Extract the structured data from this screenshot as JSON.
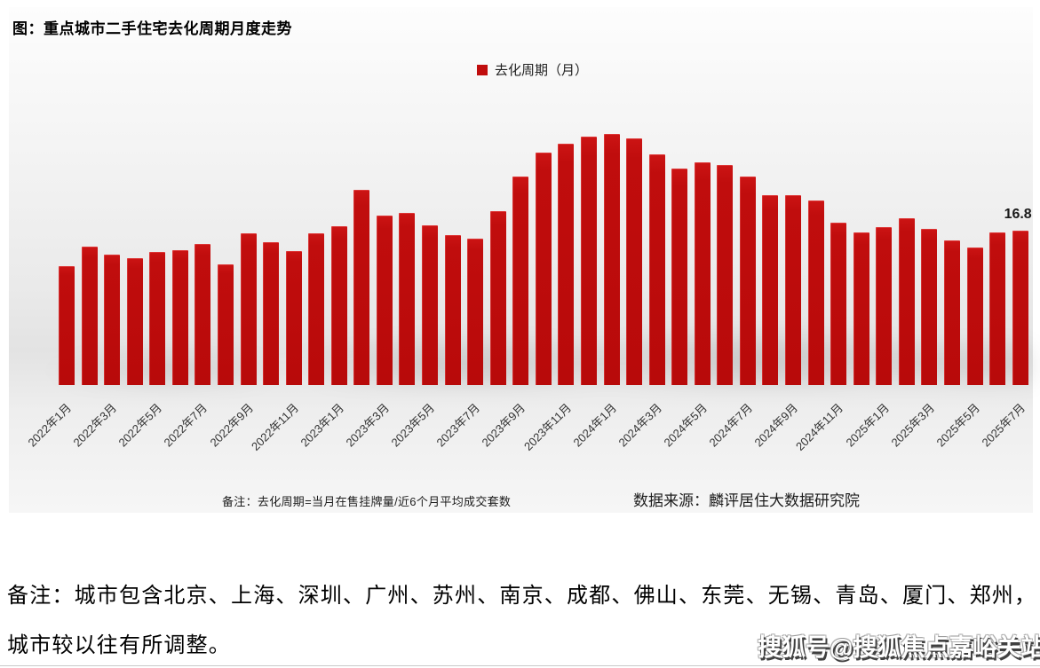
{
  "header": {
    "title": "图：重点城市二手住宅去化周期月度走势"
  },
  "legend": {
    "label": "去化周期（月）",
    "color": "#c00d0d"
  },
  "chart_data": {
    "type": "bar",
    "title": "重点城市二手住宅去化周期月度走势",
    "series_name": "去化周期（月）",
    "bar_color": "#c00d0d",
    "grid": false,
    "legend_position": "top-center",
    "ylim": [
      0,
      28
    ],
    "x_tick_every": 2,
    "categories": [
      "2022年1月",
      "2022年2月",
      "2022年3月",
      "2022年4月",
      "2022年5月",
      "2022年6月",
      "2022年7月",
      "2022年8月",
      "2022年9月",
      "2022年10月",
      "2022年11月",
      "2022年12月",
      "2023年1月",
      "2023年2月",
      "2023年3月",
      "2023年4月",
      "2023年5月",
      "2023年6月",
      "2023年7月",
      "2023年8月",
      "2023年9月",
      "2023年10月",
      "2023年11月",
      "2023年12月",
      "2024年1月",
      "2024年2月",
      "2024年3月",
      "2024年4月",
      "2024年5月",
      "2024年6月",
      "2024年7月",
      "2024年8月",
      "2024年9月",
      "2024年10月",
      "2024年11月",
      "2024年12月",
      "2025年1月",
      "2025年2月",
      "2025年3月",
      "2025年4月",
      "2025年5月",
      "2025年6月",
      "2025年7月"
    ],
    "values": [
      12.9,
      15.0,
      14.2,
      13.8,
      14.5,
      14.7,
      15.3,
      13.1,
      16.5,
      15.5,
      14.6,
      16.5,
      17.3,
      21.2,
      18.4,
      18.7,
      17.4,
      16.3,
      15.9,
      18.9,
      22.7,
      25.3,
      26.2,
      27.0,
      27.3,
      26.8,
      25.1,
      23.5,
      24.2,
      23.9,
      22.7,
      20.6,
      20.6,
      20.1,
      17.6,
      16.6,
      17.2,
      18.1,
      17.0,
      15.7,
      14.9,
      16.6,
      16.8
    ],
    "tick_labels": [
      "2022年1月",
      "2022年3月",
      "2022年5月",
      "2022年7月",
      "2022年9月",
      "2022年11月",
      "2023年1月",
      "2023年3月",
      "2023年5月",
      "2023年7月",
      "2023年9月",
      "2023年11月",
      "2024年1月",
      "2024年3月",
      "2024年5月",
      "2024年7月",
      "2024年9月",
      "2024年11月",
      "2025年1月",
      "2025年3月",
      "2025年5月",
      "2025年7月"
    ],
    "last_value_label": "16.8"
  },
  "footnote": {
    "left": "备注：去化周期=当月在售挂牌量/近6个月平均成交套数",
    "right": "数据来源：麟评居住大数据研究院"
  },
  "notes": {
    "line1": "备注：城市包含北京、上海、深圳、广州、苏州、南京、成都、佛山、东莞、无锡、青岛、厦门、郑州，",
    "line2": "城市较以往有所调整。"
  },
  "watermark": {
    "text": "搜狐号@搜狐焦点嘉峪关站"
  }
}
